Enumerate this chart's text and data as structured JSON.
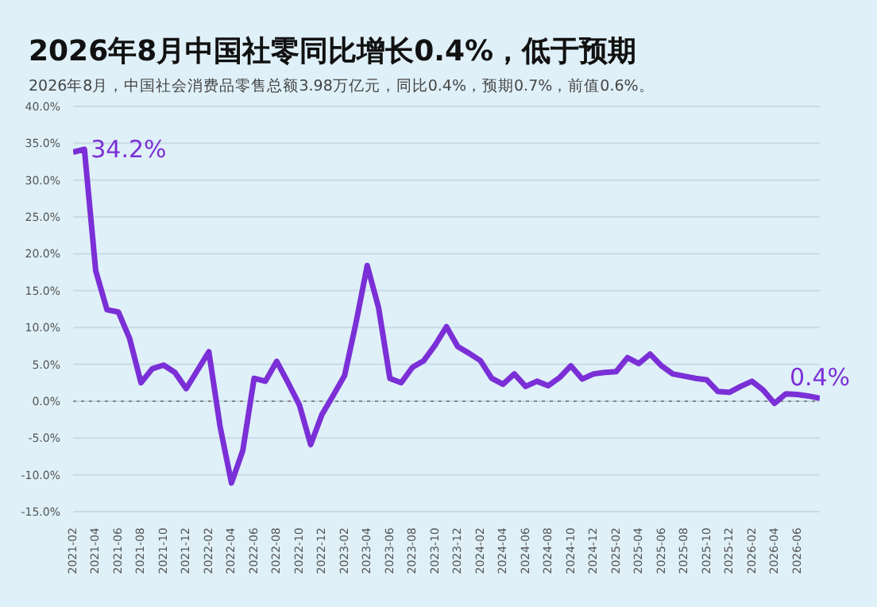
{
  "chart_data": {
    "type": "line",
    "title": "2026年8月中国社零同比增长0.4%，低于预期",
    "subtitle": "2026年8月，中国社会消费品零售总额3.98万亿元，同比0.4%，预期0.7%，前值0.6%。",
    "x": [
      "2021-02",
      "2021-03",
      "2021-04",
      "2021-05",
      "2021-06",
      "2021-07",
      "2021-08",
      "2021-09",
      "2021-10",
      "2021-11",
      "2021-12",
      "2022-01",
      "2022-02",
      "2022-03",
      "2022-04",
      "2022-05",
      "2022-06",
      "2022-07",
      "2022-08",
      "2022-09",
      "2022-10",
      "2022-11",
      "2022-12",
      "2023-01",
      "2023-02",
      "2023-03",
      "2023-04",
      "2023-05",
      "2023-06",
      "2023-07",
      "2023-08",
      "2023-09",
      "2023-10",
      "2023-11",
      "2023-12",
      "2024-01",
      "2024-02",
      "2024-03",
      "2024-04",
      "2024-05",
      "2024-06",
      "2024-07",
      "2024-08",
      "2024-09",
      "2024-10",
      "2024-11",
      "2024-12",
      "2025-01",
      "2025-02",
      "2025-03",
      "2025-04",
      "2025-05",
      "2025-06",
      "2025-07",
      "2025-08",
      "2025-09",
      "2025-10",
      "2025-11",
      "2025-12",
      "2026-01",
      "2026-02",
      "2026-03",
      "2026-04",
      "2026-05",
      "2026-06",
      "2026-07",
      "2026-08"
    ],
    "series": [
      {
        "color": "#7b2fd6",
        "values": [
          33.8,
          34.2,
          17.7,
          12.4,
          12.1,
          8.5,
          2.5,
          4.4,
          4.9,
          3.9,
          1.7,
          4.2,
          6.7,
          -3.5,
          -11.1,
          -6.7,
          3.1,
          2.7,
          5.4,
          2.5,
          -0.5,
          -5.9,
          -1.8,
          0.8,
          3.5,
          10.6,
          18.4,
          12.7,
          3.1,
          2.5,
          4.6,
          5.5,
          7.6,
          10.1,
          7.4,
          6.5,
          5.5,
          3.1,
          2.3,
          3.7,
          2.0,
          2.7,
          2.1,
          3.2,
          4.8,
          3.0,
          3.7,
          3.9,
          4.0,
          5.9,
          5.1,
          6.4,
          4.8,
          3.7,
          3.4,
          3.1,
          2.9,
          1.3,
          1.2,
          2.0,
          2.7,
          1.5,
          -0.3,
          1.0,
          0.9,
          0.7,
          0.4
        ]
      }
    ],
    "xlim": [
      "2021-02",
      "2026-08"
    ],
    "xticks": [
      "2021-02",
      "2021-04",
      "2021-06",
      "2021-08",
      "2021-10",
      "2021-12",
      "2022-02",
      "2022-04",
      "2022-06",
      "2022-08",
      "2022-10",
      "2022-12",
      "2023-02",
      "2023-04",
      "2023-06",
      "2023-08",
      "2023-10",
      "2023-12",
      "2024-02",
      "2024-04",
      "2024-06",
      "2024-08",
      "2024-10",
      "2024-12",
      "2025-02",
      "2025-04",
      "2025-06",
      "2025-08",
      "2025-10",
      "2025-12",
      "2026-02",
      "2026-04",
      "2026-06"
    ],
    "ylim": [
      -15,
      40
    ],
    "yticks": [
      {
        "value": -15,
        "label": "-15.0%"
      },
      {
        "value": -10,
        "label": "-10.0%"
      },
      {
        "value": -5,
        "label": "-5.0%"
      },
      {
        "value": 0,
        "label": "0.0%"
      },
      {
        "value": 5,
        "label": "5.0%"
      },
      {
        "value": 10,
        "label": "10.0%"
      },
      {
        "value": 15,
        "label": "15.0%"
      },
      {
        "value": 20,
        "label": "20.0%"
      },
      {
        "value": 25,
        "label": "25.0%"
      },
      {
        "value": 30,
        "label": "30.0%"
      },
      {
        "value": 35,
        "label": "35.0%"
      },
      {
        "value": 40,
        "label": "40.0%"
      }
    ],
    "grid": "y",
    "legend": false,
    "marker": "none",
    "line_style": "solid",
    "ref_lines": [
      {
        "axis": "y",
        "value": 0,
        "color": "#888888",
        "line_style": "dotted"
      }
    ],
    "annotations": [
      {
        "text": "34.2%",
        "x": "2021-03",
        "y": 34.2
      },
      {
        "text": "0.4%",
        "x": "2026-08",
        "y": 0.4
      }
    ]
  }
}
